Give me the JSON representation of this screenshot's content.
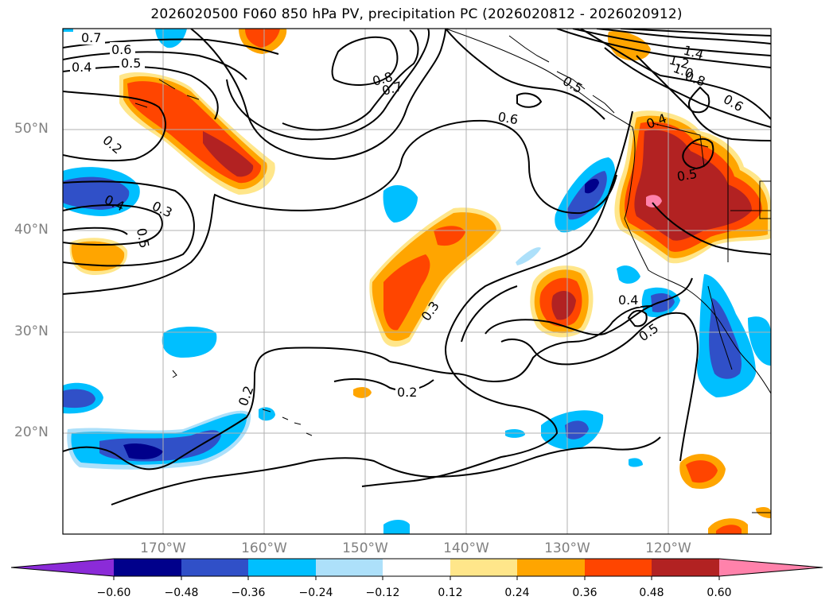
{
  "title": "2026020500 F060 850 hPa PV, precipitation PC (2026020812 - 2026020912)",
  "map": {
    "lat_labels": [
      "50°N",
      "40°N",
      "30°N",
      "20°N"
    ],
    "lon_labels": [
      "170°W",
      "160°W",
      "150°W",
      "140°W",
      "130°W",
      "120°W"
    ],
    "contour_labels": [
      "0.7",
      "0.6",
      "0.5",
      "0.4",
      "0.2",
      "0.4",
      "0.3",
      "0.5",
      "0.8",
      "0.7",
      "0.6",
      "0.5",
      "1.4",
      "1.2",
      "1.0",
      "0.8",
      "0.6",
      "0.4",
      "0.5",
      "0.3",
      "0.4",
      "0.5",
      "0.2",
      "0.2"
    ]
  },
  "colorbar": {
    "ticks": [
      "−0.60",
      "−0.48",
      "−0.36",
      "−0.24",
      "−0.12",
      "0.12",
      "0.24",
      "0.36",
      "0.48",
      "0.60"
    ],
    "colors": [
      "#8B2BD8",
      "#00008B",
      "#3050C8",
      "#00BFFF",
      "#ADE0FA",
      "#FFFFFF",
      "#FFE68A",
      "#FFA500",
      "#FF4500",
      "#B22222",
      "#FF82AB"
    ]
  }
}
